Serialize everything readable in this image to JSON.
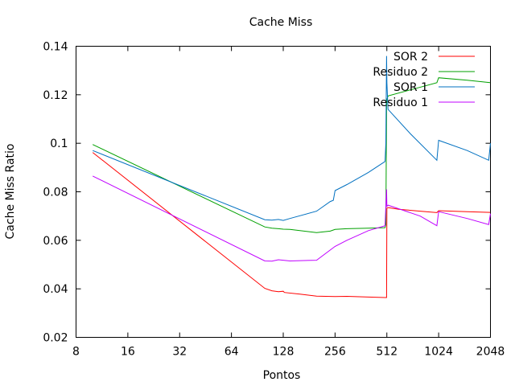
{
  "chart_data": {
    "type": "line",
    "title": "Cache Miss",
    "xlabel": "Pontos",
    "ylabel": "Cache Miss Ratio",
    "x_scale": "log2",
    "xlim": [
      8,
      2048
    ],
    "ylim": [
      0.02,
      0.14
    ],
    "x_ticks": [
      8,
      16,
      32,
      64,
      128,
      256,
      512,
      1024,
      2048
    ],
    "x_tick_labels": [
      "8",
      "16",
      "32",
      "64",
      "128",
      "256",
      "512",
      "1024",
      "2048"
    ],
    "y_ticks": [
      0.02,
      0.04,
      0.06,
      0.08,
      0.1,
      0.12,
      0.14
    ],
    "y_tick_labels": [
      "0.02",
      "0.04",
      "0.06",
      "0.08",
      "0.1",
      "0.12",
      "0.14"
    ],
    "grid": false,
    "legend_position": "top-right",
    "series": [
      {
        "name": "SOR 2",
        "color": "#ff0000",
        "points": [
          [
            10,
            0.0962
          ],
          [
            100,
            0.0402
          ],
          [
            110,
            0.0392
          ],
          [
            120,
            0.0388
          ],
          [
            128,
            0.039
          ],
          [
            130,
            0.0385
          ],
          [
            160,
            0.0378
          ],
          [
            200,
            0.037
          ],
          [
            256,
            0.0368
          ],
          [
            300,
            0.0369
          ],
          [
            400,
            0.0366
          ],
          [
            500,
            0.0364
          ],
          [
            510,
            0.0364
          ],
          [
            512,
            0.0732
          ],
          [
            520,
            0.0735
          ],
          [
            600,
            0.0728
          ],
          [
            800,
            0.072
          ],
          [
            1000,
            0.0714
          ],
          [
            1024,
            0.0722
          ],
          [
            1500,
            0.0718
          ],
          [
            2040,
            0.0715
          ]
        ]
      },
      {
        "name": "Residuo 2",
        "color": "#00a000",
        "points": [
          [
            10,
            0.0995
          ],
          [
            100,
            0.0655
          ],
          [
            110,
            0.065
          ],
          [
            120,
            0.0648
          ],
          [
            128,
            0.0646
          ],
          [
            140,
            0.0645
          ],
          [
            200,
            0.0632
          ],
          [
            240,
            0.0638
          ],
          [
            256,
            0.0645
          ],
          [
            300,
            0.0648
          ],
          [
            400,
            0.065
          ],
          [
            500,
            0.0652
          ],
          [
            505,
            0.0665
          ],
          [
            510,
            0.115
          ],
          [
            512,
            0.118
          ],
          [
            520,
            0.1195
          ],
          [
            700,
            0.122
          ],
          [
            1000,
            0.125
          ],
          [
            1024,
            0.127
          ],
          [
            1500,
            0.126
          ],
          [
            2040,
            0.125
          ]
        ]
      },
      {
        "name": "SOR 1",
        "color": "#0070c0",
        "points": [
          [
            10,
            0.097
          ],
          [
            100,
            0.0685
          ],
          [
            110,
            0.0683
          ],
          [
            120,
            0.0686
          ],
          [
            128,
            0.0682
          ],
          [
            140,
            0.069
          ],
          [
            200,
            0.072
          ],
          [
            240,
            0.076
          ],
          [
            250,
            0.0765
          ],
          [
            256,
            0.0805
          ],
          [
            300,
            0.083
          ],
          [
            400,
            0.088
          ],
          [
            500,
            0.0925
          ],
          [
            505,
            0.1
          ],
          [
            510,
            0.136
          ],
          [
            512,
            0.125
          ],
          [
            520,
            0.114
          ],
          [
            700,
            0.104
          ],
          [
            1000,
            0.093
          ],
          [
            1024,
            0.1012
          ],
          [
            1500,
            0.097
          ],
          [
            2000,
            0.093
          ],
          [
            2048,
            0.1
          ]
        ]
      },
      {
        "name": "Residuo 1",
        "color": "#c000ff",
        "points": [
          [
            10,
            0.0865
          ],
          [
            100,
            0.0515
          ],
          [
            110,
            0.0514
          ],
          [
            120,
            0.052
          ],
          [
            128,
            0.0518
          ],
          [
            140,
            0.0515
          ],
          [
            200,
            0.0518
          ],
          [
            240,
            0.056
          ],
          [
            256,
            0.0575
          ],
          [
            300,
            0.06
          ],
          [
            400,
            0.064
          ],
          [
            500,
            0.066
          ],
          [
            510,
            0.081
          ],
          [
            512,
            0.074
          ],
          [
            520,
            0.0745
          ],
          [
            600,
            0.073
          ],
          [
            800,
            0.07
          ],
          [
            1000,
            0.066
          ],
          [
            1024,
            0.0718
          ],
          [
            1500,
            0.069
          ],
          [
            2000,
            0.0665
          ],
          [
            2048,
            0.071
          ]
        ]
      }
    ]
  }
}
